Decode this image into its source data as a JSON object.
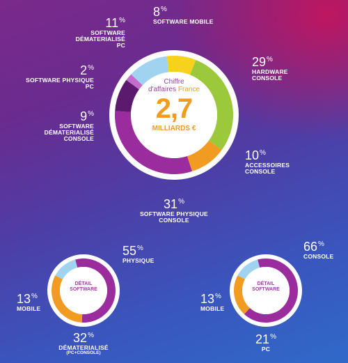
{
  "chart_data": [
    {
      "type": "pie",
      "center": {
        "line1": "Chiffre",
        "line2_pre": "d'affaires",
        "line2_accent": "France",
        "value": "2,7",
        "unit": "MILLIARDS €"
      },
      "slices": [
        {
          "value": 8,
          "pct": "8",
          "label": "SOFTWARE MOBILE",
          "color": "#f6d21c"
        },
        {
          "value": 29,
          "pct": "29",
          "label": "HARDWARE CONSOLE",
          "color": "#9bc93b"
        },
        {
          "value": 10,
          "pct": "10",
          "label": "ACCESSOIRES CONSOLE",
          "color": "#f29b22"
        },
        {
          "value": 31,
          "pct": "31",
          "label": "SOFTWARE PHYSIQUE CONSOLE",
          "color": "#9b2c9d"
        },
        {
          "value": 9,
          "pct": "9",
          "label": "SOFTWARE DÉMATERIALISÉ CONSOLE",
          "color": "#5b1a6e"
        },
        {
          "value": 2,
          "pct": "2",
          "label": "SOFTWARE PHYSIQUE PC",
          "color": "#c46ccc"
        },
        {
          "value": 11,
          "pct": "11",
          "label": "SOFTWARE DÉMATERIALISÉ PC",
          "color": "#9fd3f0"
        }
      ]
    },
    {
      "type": "pie",
      "center": "DÉTAIL SOFTWARE",
      "slices": [
        {
          "value": 55,
          "pct": "55",
          "label": "PHYSIQUE",
          "color": "#9b2c9d"
        },
        {
          "value": 32,
          "pct": "32",
          "label": "DÉMATERIALISÉ",
          "sublabel": "(PC+CONSOLE)",
          "color": "#f29b22"
        },
        {
          "value": 13,
          "pct": "13",
          "label": "MOBILE",
          "color": "#9fd3f0"
        }
      ]
    },
    {
      "type": "pie",
      "center": "DÉTAIL SOFTWARE",
      "slices": [
        {
          "value": 66,
          "pct": "66",
          "label": "CONSOLE",
          "color": "#9b2c9d"
        },
        {
          "value": 21,
          "pct": "21",
          "label": "PC",
          "color": "#f29b22"
        },
        {
          "value": 13,
          "pct": "13",
          "label": "MOBILE",
          "color": "#9fd3f0"
        }
      ]
    }
  ],
  "percent_sign": "%"
}
